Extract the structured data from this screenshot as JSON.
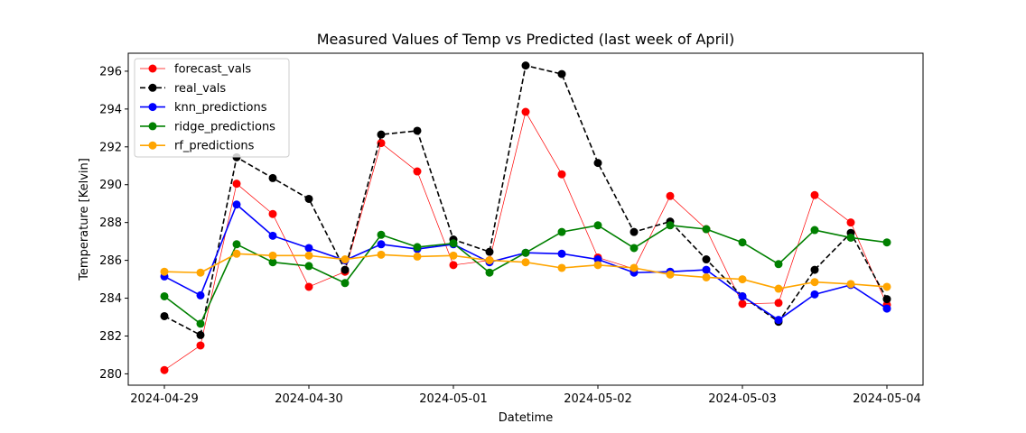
{
  "chart_data": {
    "type": "line",
    "title": "Measured Values of Temp vs Predicted (last week of April)",
    "xlabel": "Datetime",
    "ylabel": "Temperature [Kelvin]",
    "x_ticks": [
      "2024-04-29",
      "2024-04-30",
      "2024-05-01",
      "2024-05-02",
      "2024-05-03",
      "2024-05-04"
    ],
    "y_ticks": [
      280,
      282,
      284,
      286,
      288,
      290,
      292,
      294,
      296
    ],
    "xlim": [
      "2024-04-28T18:00",
      "2024-05-04T06:00"
    ],
    "ylim": [
      279.4,
      296.95
    ],
    "grid": false,
    "legend_position": "upper-left",
    "x": [
      "2024-04-29T00:00",
      "2024-04-29T06:00",
      "2024-04-29T12:00",
      "2024-04-29T18:00",
      "2024-04-30T00:00",
      "2024-04-30T06:00",
      "2024-04-30T12:00",
      "2024-04-30T18:00",
      "2024-05-01T00:00",
      "2024-05-01T06:00",
      "2024-05-01T12:00",
      "2024-05-01T18:00",
      "2024-05-02T00:00",
      "2024-05-02T06:00",
      "2024-05-02T12:00",
      "2024-05-02T18:00",
      "2024-05-03T00:00",
      "2024-05-03T06:00",
      "2024-05-03T12:00",
      "2024-05-03T18:00",
      "2024-05-04T00:00"
    ],
    "series": [
      {
        "name": "forecast_vals",
        "color": "#ff0000",
        "linestyle": "solid",
        "linewidth": "thin",
        "values": [
          280.2,
          281.5,
          290.05,
          288.45,
          284.6,
          285.4,
          292.2,
          290.7,
          285.75,
          286.0,
          293.85,
          290.55,
          286.15,
          285.55,
          289.4,
          287.65,
          283.7,
          283.75,
          289.45,
          288.0,
          283.65
        ]
      },
      {
        "name": "real_vals",
        "color": "#000000",
        "linestyle": "dashed",
        "linewidth": "thick",
        "values": [
          283.05,
          282.05,
          291.45,
          290.35,
          289.25,
          285.5,
          292.65,
          292.85,
          287.1,
          286.45,
          296.3,
          295.85,
          291.15,
          287.5,
          288.05,
          286.05,
          284.1,
          282.75,
          285.5,
          287.45,
          283.95
        ]
      },
      {
        "name": "knn_predictions",
        "color": "#0000ff",
        "linestyle": "solid",
        "linewidth": "thick",
        "values": [
          285.15,
          284.15,
          288.95,
          287.3,
          286.65,
          286.0,
          286.85,
          286.6,
          286.85,
          285.9,
          286.4,
          286.35,
          286.05,
          285.35,
          285.4,
          285.5,
          284.1,
          282.85,
          284.2,
          284.7,
          283.45
        ]
      },
      {
        "name": "ridge_predictions",
        "color": "#008000",
        "linestyle": "solid",
        "linewidth": "thick",
        "values": [
          284.1,
          282.65,
          286.85,
          285.9,
          285.7,
          284.8,
          287.35,
          286.7,
          286.9,
          285.35,
          286.4,
          287.5,
          287.85,
          286.65,
          287.85,
          287.65,
          286.95,
          285.8,
          287.6,
          287.2,
          286.95
        ]
      },
      {
        "name": "rf_predictions",
        "color": "#ffa500",
        "linestyle": "solid",
        "linewidth": "thick",
        "values": [
          285.4,
          285.35,
          286.35,
          286.25,
          286.25,
          286.05,
          286.3,
          286.2,
          286.25,
          286.0,
          285.9,
          285.6,
          285.75,
          285.6,
          285.25,
          285.1,
          285.0,
          284.5,
          284.85,
          284.75,
          284.6
        ]
      }
    ]
  }
}
